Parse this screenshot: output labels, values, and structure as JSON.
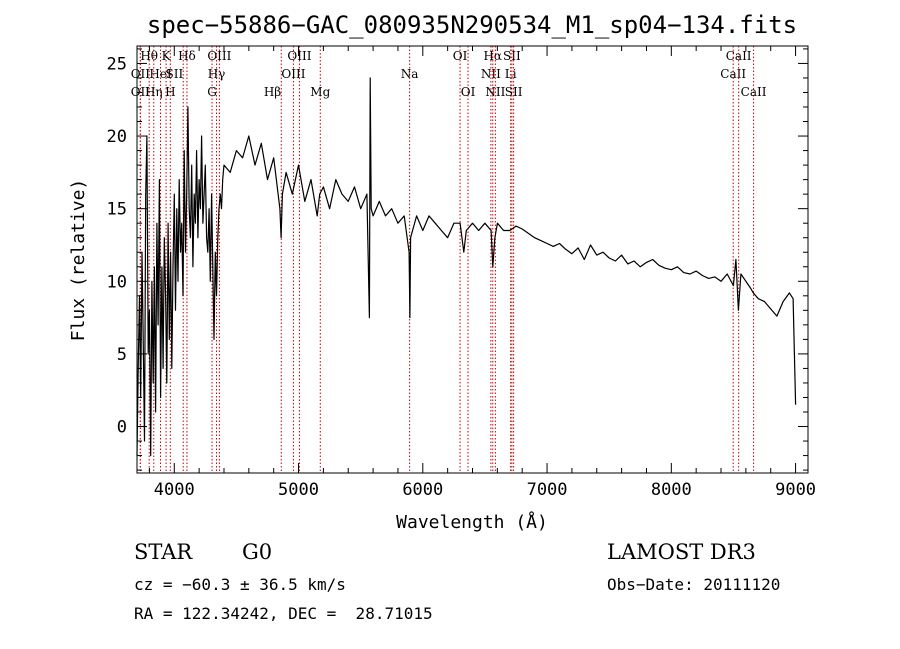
{
  "chart_data": {
    "type": "line",
    "title": "spec−55886−GAC_080935N290534_M1_sp04−134.fits",
    "xlabel": "Wavelength (Å)",
    "ylabel": "Flux (relative)",
    "xlim": [
      3700,
      9100
    ],
    "ylim": [
      -3.2,
      26.2
    ],
    "xticks": [
      4000,
      5000,
      6000,
      7000,
      8000,
      9000
    ],
    "yticks": [
      0,
      5,
      10,
      15,
      20,
      25
    ],
    "x_minor_step": 200,
    "y_minor_step": 1,
    "grid": false,
    "line_color": "#000000",
    "marker_color": "#cc0000",
    "series": [
      {
        "name": "flux",
        "x": [
          3700,
          3710,
          3720,
          3730,
          3740,
          3750,
          3760,
          3770,
          3780,
          3790,
          3800,
          3810,
          3820,
          3830,
          3840,
          3850,
          3860,
          3870,
          3880,
          3890,
          3900,
          3910,
          3920,
          3930,
          3940,
          3950,
          3960,
          3970,
          3980,
          3990,
          4000,
          4010,
          4020,
          4030,
          4040,
          4050,
          4060,
          4070,
          4080,
          4090,
          4100,
          4110,
          4120,
          4130,
          4140,
          4150,
          4160,
          4170,
          4180,
          4190,
          4200,
          4210,
          4220,
          4230,
          4240,
          4250,
          4260,
          4270,
          4280,
          4290,
          4300,
          4310,
          4320,
          4330,
          4340,
          4350,
          4360,
          4370,
          4380,
          4390,
          4400,
          4450,
          4500,
          4550,
          4600,
          4650,
          4700,
          4750,
          4800,
          4850,
          4860,
          4870,
          4900,
          4950,
          5000,
          5050,
          5100,
          5150,
          5170,
          5200,
          5250,
          5300,
          5350,
          5400,
          5450,
          5500,
          5550,
          5570,
          5577,
          5585,
          5600,
          5650,
          5700,
          5750,
          5800,
          5850,
          5890,
          5896,
          5902,
          5950,
          6000,
          6050,
          6100,
          6150,
          6200,
          6250,
          6300,
          6330,
          6350,
          6400,
          6450,
          6500,
          6550,
          6563,
          6580,
          6600,
          6650,
          6700,
          6750,
          6800,
          6850,
          6900,
          6950,
          7000,
          7050,
          7100,
          7150,
          7200,
          7250,
          7300,
          7350,
          7400,
          7450,
          7500,
          7550,
          7600,
          7650,
          7700,
          7750,
          7800,
          7850,
          7900,
          7950,
          8000,
          8050,
          8100,
          8150,
          8200,
          8250,
          8300,
          8350,
          8400,
          8450,
          8500,
          8520,
          8540,
          8560,
          8600,
          8640,
          8660,
          8700,
          8750,
          8800,
          8850,
          8900,
          8950,
          8980,
          9000
        ],
        "values": [
          -2,
          4,
          9,
          2,
          12,
          6,
          -1,
          16,
          20,
          5,
          8,
          -2,
          10,
          3,
          11,
          1,
          14,
          7,
          17,
          2,
          11,
          4,
          13,
          9,
          3,
          14,
          6,
          12,
          4,
          11,
          16,
          8,
          15,
          10,
          17,
          12,
          14,
          9,
          19,
          12,
          16,
          22,
          15,
          13,
          18,
          11,
          16,
          14,
          19,
          13,
          17,
          15,
          20,
          14,
          16,
          18,
          13,
          12,
          15,
          10,
          16,
          11,
          6,
          12,
          9,
          13,
          15,
          16,
          15,
          17,
          18,
          17.5,
          19,
          18.5,
          20,
          18,
          19.5,
          17,
          18.5,
          15,
          13,
          16,
          17.5,
          16,
          18,
          15.5,
          17,
          14.5,
          16,
          16.5,
          15,
          17,
          16,
          15.5,
          16.5,
          15,
          16,
          7.5,
          24,
          15,
          14.5,
          15.5,
          14.5,
          15,
          14,
          14.5,
          12,
          7.5,
          13,
          14.5,
          13.5,
          14.5,
          14,
          13.5,
          13,
          14,
          14,
          12,
          13.5,
          14,
          13.5,
          14,
          13.5,
          11,
          13,
          14,
          13.5,
          13.5,
          13.8,
          13.6,
          13.3,
          13,
          12.8,
          12.6,
          12.4,
          12.6,
          12.2,
          11.9,
          12.3,
          11.5,
          12.5,
          11.8,
          12,
          11.6,
          11.4,
          11.8,
          11.2,
          11.4,
          11,
          11.3,
          11.5,
          11.1,
          10.9,
          10.8,
          11,
          10.6,
          10.5,
          10.7,
          10.4,
          10.2,
          10.3,
          10,
          10.5,
          9.7,
          11.5,
          8,
          10.5,
          10,
          9.5,
          9.2,
          8.8,
          8.6,
          8.1,
          7.6,
          8.6,
          9.2,
          8.8,
          1.5
        ]
      }
    ],
    "line_markers": [
      {
        "label": "OII",
        "x": 3727,
        "row": 2,
        "align": "center"
      },
      {
        "label": "Hθ",
        "x": 3798,
        "row": 1,
        "align": "center"
      },
      {
        "label": "OII",
        "x": 3727,
        "row": 3,
        "align": "center"
      },
      {
        "label": "Hη",
        "x": 3835,
        "row": 3,
        "align": "center"
      },
      {
        "label": "K",
        "x": 3934,
        "row": 1,
        "align": "center"
      },
      {
        "label": "HeI",
        "x": 3889,
        "row": 2,
        "align": "center"
      },
      {
        "label": "H",
        "x": 3968,
        "row": 3,
        "align": "center"
      },
      {
        "label": "SII",
        "x": 4072,
        "row": 2,
        "align": "right"
      },
      {
        "label": "Hδ",
        "x": 4102,
        "row": 1,
        "align": "center"
      },
      {
        "label": "OIII",
        "x": 4363,
        "row": 1,
        "align": "center"
      },
      {
        "label": "Hγ",
        "x": 4340,
        "row": 2,
        "align": "center"
      },
      {
        "label": "G",
        "x": 4304,
        "row": 3,
        "align": "center"
      },
      {
        "label": "Hβ",
        "x": 4861,
        "row": 3,
        "align": "right"
      },
      {
        "label": "OIII",
        "x": 4959,
        "row": 2,
        "align": "center"
      },
      {
        "label": "OIII",
        "x": 5007,
        "row": 1,
        "align": "center"
      },
      {
        "label": "Mg",
        "x": 5175,
        "row": 3,
        "align": "center"
      },
      {
        "label": "Na",
        "x": 5894,
        "row": 2,
        "align": "center"
      },
      {
        "label": "OI",
        "x": 6300,
        "row": 1,
        "align": "center"
      },
      {
        "label": "OI",
        "x": 6364,
        "row": 3,
        "align": "center"
      },
      {
        "label": "NII",
        "x": 6548,
        "row": 2,
        "align": "center"
      },
      {
        "label": "Hα",
        "x": 6563,
        "row": 1,
        "align": "center"
      },
      {
        "label": "NII",
        "x": 6584,
        "row": 3,
        "align": "center"
      },
      {
        "label": "Li",
        "x": 6707,
        "row": 2,
        "align": "center"
      },
      {
        "label": "SII",
        "x": 6717,
        "row": 1,
        "align": "center"
      },
      {
        "label": "SII",
        "x": 6731,
        "row": 3,
        "align": "center"
      },
      {
        "label": "CaII",
        "x": 8498,
        "row": 2,
        "align": "center"
      },
      {
        "label": "CaII",
        "x": 8542,
        "row": 1,
        "align": "center"
      },
      {
        "label": "CaII",
        "x": 8662,
        "row": 3,
        "align": "center"
      }
    ]
  },
  "info": {
    "object_class": "STAR",
    "subclass": "G0",
    "survey": "LAMOST DR3",
    "cz": "cz = −60.3 ± 36.5 km/s",
    "obs_date": "Obs−Date: 20111120",
    "coords": "RA = 122.34242, DEC =  28.71015"
  }
}
